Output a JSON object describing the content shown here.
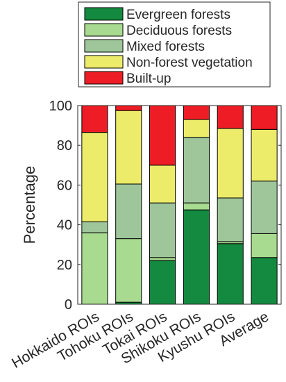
{
  "chart_data": {
    "type": "bar",
    "stacked": true,
    "categories": [
      "Hokkaido ROIs",
      "Tohoku ROIs",
      "Tokai ROIs",
      "Shikoku ROIs",
      "Kyushu ROIs",
      "Average"
    ],
    "series": [
      {
        "name": "Evergreen forests",
        "color": "#138a3f",
        "values": [
          0,
          1,
          22,
          47.5,
          30.5,
          23.5
        ]
      },
      {
        "name": "Deciduous forests",
        "color": "#a8db8f",
        "values": [
          36,
          32,
          1.5,
          3.5,
          1,
          12
        ]
      },
      {
        "name": "Mixed forests",
        "color": "#9ec69a",
        "values": [
          5.5,
          27.5,
          27.5,
          33,
          22,
          26.5
        ]
      },
      {
        "name": "Non-forest vegetation",
        "color": "#ecec6a",
        "values": [
          45,
          37,
          19,
          9,
          35,
          26
        ]
      },
      {
        "name": "Built-up",
        "color": "#ee1c24",
        "values": [
          13.5,
          2.5,
          30,
          7,
          11.5,
          12
        ]
      }
    ],
    "ylabel": "Percentage",
    "xlabel": "",
    "ylim": [
      0,
      100
    ],
    "yticks": [
      0,
      20,
      40,
      60,
      80,
      100
    ],
    "legend_position": "top"
  }
}
